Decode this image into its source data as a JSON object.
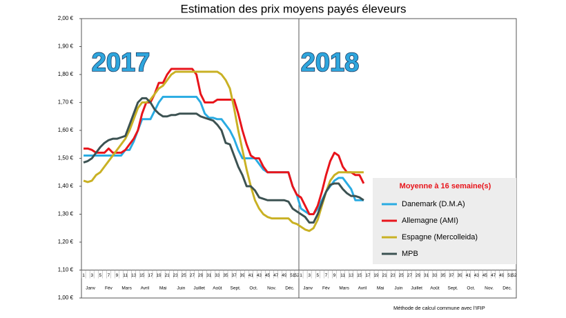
{
  "chart_data": {
    "type": "line",
    "title": "Estimation des prix moyens payés éleveurs",
    "annotations": [
      "2017",
      "2018"
    ],
    "legend_title": "Moyenne à  16 semaine(s)",
    "footnote": "Méthode de calcul commune avec l'IFIP",
    "categories": [
      "1",
      null,
      "3",
      null,
      "5",
      null,
      "7",
      null,
      "9",
      null,
      "11",
      null,
      "13",
      null,
      "15",
      null,
      "17",
      null,
      "19",
      null,
      "21",
      null,
      "23",
      null,
      "25",
      null,
      "27",
      null,
      "29",
      null,
      "31",
      null,
      "33",
      null,
      "35",
      null,
      "37",
      null,
      "39",
      null,
      "41",
      null,
      "43",
      null,
      "45",
      null,
      "47",
      null,
      "49",
      null,
      "51",
      "52",
      "1",
      null,
      "3",
      null,
      "5",
      null,
      "7",
      null,
      "9",
      null,
      "11",
      null,
      "13",
      null,
      "15",
      null,
      "17",
      null,
      "19",
      null,
      "21",
      null,
      "23",
      null,
      "25",
      null,
      "27",
      null,
      "29",
      null,
      "31",
      null,
      "33",
      null,
      "35",
      null,
      "37",
      null,
      "39",
      null,
      "41",
      null,
      "43",
      null,
      "45",
      null,
      "47",
      null,
      "49",
      null,
      "51",
      "52"
    ],
    "month_labels": [
      "Janv",
      "Fév",
      "Mars",
      "Avril",
      "Mai",
      "Juin",
      "Juillet",
      "Août",
      "Sept.",
      "Oct.",
      "Nov.",
      "Déc.",
      "Janv",
      "Fév",
      "Mars",
      "Avril",
      "Mai",
      "Juin",
      "Juillet",
      "Août",
      "Sept.",
      "Oct.",
      "Nov.",
      "Déc."
    ],
    "ylim": [
      1.0,
      2.0
    ],
    "yticks": [
      {
        "value": 1.0,
        "label": "1,00 €"
      },
      {
        "value": 1.1,
        "label": "1,10 €"
      },
      {
        "value": 1.2,
        "label": "1,20 €"
      },
      {
        "value": 1.3,
        "label": "1,30 €"
      },
      {
        "value": 1.4,
        "label": "1,40 €"
      },
      {
        "value": 1.5,
        "label": "1,50 €"
      },
      {
        "value": 1.6,
        "label": "1,60 €"
      },
      {
        "value": 1.7,
        "label": "1,70 €"
      },
      {
        "value": 1.8,
        "label": "1,80 €"
      },
      {
        "value": 1.9,
        "label": "1,90 €"
      },
      {
        "value": 2.0,
        "label": "2,00 €"
      }
    ],
    "grid": false,
    "series": [
      {
        "name": "Danemark (D.M.A)",
        "color": "#29abe2",
        "values": [
          1.51,
          1.51,
          1.51,
          1.51,
          1.51,
          1.51,
          1.51,
          1.51,
          1.51,
          1.51,
          1.53,
          1.53,
          1.56,
          1.6,
          1.64,
          1.64,
          1.64,
          1.67,
          1.7,
          1.72,
          1.72,
          1.72,
          1.72,
          1.72,
          1.72,
          1.72,
          1.72,
          1.72,
          1.7,
          1.66,
          1.645,
          1.645,
          1.64,
          1.64,
          1.62,
          1.6,
          1.57,
          1.53,
          1.5,
          1.5,
          1.5,
          1.5,
          1.48,
          1.46,
          1.45,
          1.45,
          1.45,
          1.45,
          1.45,
          1.45,
          1.4,
          1.37,
          1.32,
          1.31,
          1.3,
          1.3,
          1.32,
          1.35,
          1.38,
          1.4,
          1.42,
          1.43,
          1.43,
          1.41,
          1.39,
          1.35,
          1.35,
          1.35,
          null,
          null,
          null,
          null,
          null,
          null,
          null,
          null,
          null,
          null,
          null,
          null,
          null,
          null,
          null,
          null,
          null,
          null,
          null,
          null,
          null,
          null,
          null,
          null,
          null,
          null,
          null,
          null,
          null,
          null,
          null,
          null,
          null,
          null,
          null,
          null
        ]
      },
      {
        "name": "Allemagne (AMI)",
        "color": "#e8141b",
        "values": [
          1.535,
          1.535,
          1.53,
          1.52,
          1.52,
          1.52,
          1.535,
          1.52,
          1.52,
          1.52,
          1.53,
          1.55,
          1.57,
          1.6,
          1.66,
          1.7,
          1.7,
          1.73,
          1.77,
          1.77,
          1.8,
          1.82,
          1.82,
          1.82,
          1.82,
          1.82,
          1.82,
          1.8,
          1.73,
          1.7,
          1.7,
          1.7,
          1.71,
          1.71,
          1.71,
          1.71,
          1.71,
          1.66,
          1.6,
          1.55,
          1.51,
          1.5,
          1.5,
          1.47,
          1.45,
          1.45,
          1.45,
          1.45,
          1.45,
          1.45,
          1.4,
          1.37,
          1.36,
          1.33,
          1.3,
          1.3,
          1.33,
          1.38,
          1.44,
          1.49,
          1.52,
          1.51,
          1.47,
          1.45,
          1.45,
          1.44,
          1.44,
          1.41,
          null,
          null,
          null,
          null,
          null,
          null,
          null,
          null,
          null,
          null,
          null,
          null,
          null,
          null,
          null,
          null,
          null,
          null,
          null,
          null,
          null,
          null,
          null,
          null,
          null,
          null,
          null,
          null,
          null,
          null,
          null,
          null,
          null,
          null,
          null,
          null
        ]
      },
      {
        "name": "Espagne (Mercolleida)",
        "color": "#c9b124",
        "values": [
          1.42,
          1.415,
          1.42,
          1.44,
          1.45,
          1.47,
          1.49,
          1.51,
          1.53,
          1.55,
          1.57,
          1.6,
          1.64,
          1.68,
          1.7,
          1.7,
          1.71,
          1.73,
          1.75,
          1.76,
          1.78,
          1.8,
          1.81,
          1.81,
          1.81,
          1.81,
          1.81,
          1.81,
          1.81,
          1.81,
          1.81,
          1.81,
          1.81,
          1.8,
          1.78,
          1.75,
          1.68,
          1.6,
          1.53,
          1.46,
          1.4,
          1.35,
          1.32,
          1.3,
          1.29,
          1.285,
          1.285,
          1.285,
          1.285,
          1.285,
          1.27,
          1.265,
          1.255,
          1.245,
          1.24,
          1.25,
          1.28,
          1.33,
          1.38,
          1.42,
          1.44,
          1.45,
          1.45,
          1.45,
          1.45,
          1.45,
          1.45,
          1.45,
          null,
          null,
          null,
          null,
          null,
          null,
          null,
          null,
          null,
          null,
          null,
          null,
          null,
          null,
          null,
          null,
          null,
          null,
          null,
          null,
          null,
          null,
          null,
          null,
          null,
          null,
          null,
          null,
          null,
          null,
          null,
          null,
          null,
          null,
          null,
          null
        ]
      },
      {
        "name": "MPB",
        "color": "#3c5252",
        "values": [
          1.485,
          1.49,
          1.5,
          1.52,
          1.54,
          1.555,
          1.565,
          1.57,
          1.57,
          1.575,
          1.58,
          1.62,
          1.66,
          1.7,
          1.715,
          1.715,
          1.7,
          1.675,
          1.66,
          1.65,
          1.65,
          1.655,
          1.655,
          1.66,
          1.66,
          1.66,
          1.66,
          1.66,
          1.65,
          1.645,
          1.64,
          1.635,
          1.62,
          1.6,
          1.555,
          1.55,
          1.51,
          1.47,
          1.44,
          1.4,
          1.4,
          1.385,
          1.36,
          1.355,
          1.35,
          1.35,
          1.35,
          1.35,
          1.35,
          1.345,
          1.32,
          1.31,
          1.3,
          1.29,
          1.27,
          1.27,
          1.3,
          1.34,
          1.38,
          1.405,
          1.41,
          1.41,
          1.39,
          1.375,
          1.365,
          1.365,
          1.36,
          1.35,
          null,
          null,
          null,
          null,
          null,
          null,
          null,
          null,
          null,
          null,
          null,
          null,
          null,
          null,
          null,
          null,
          null,
          null,
          null,
          null,
          null,
          null,
          null,
          null,
          null,
          null,
          null,
          null,
          null,
          null,
          null,
          null,
          null,
          null,
          null,
          null
        ]
      }
    ]
  }
}
